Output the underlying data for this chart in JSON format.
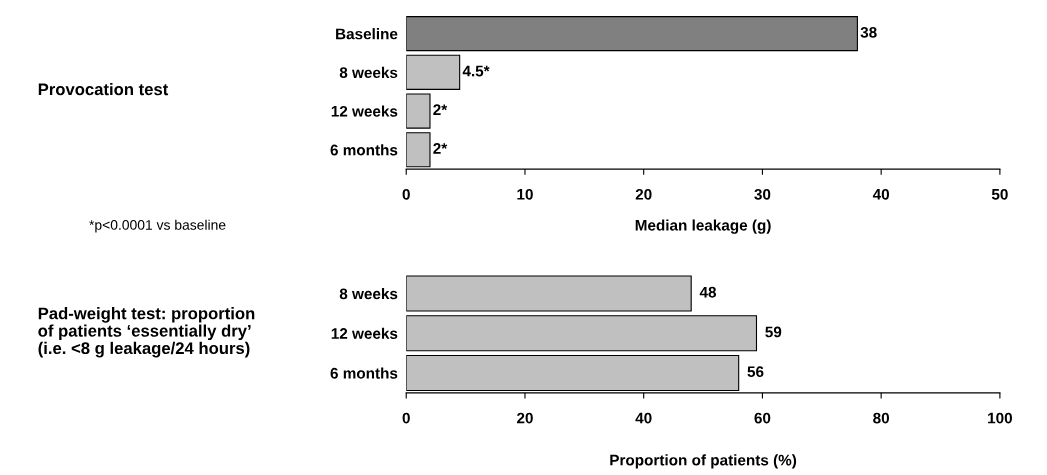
{
  "chart_data": [
    {
      "type": "bar",
      "orientation": "horizontal",
      "ylabel": "Provocation test",
      "categories": [
        "Baseline",
        "8 weeks",
        "12 weeks",
        "6 months"
      ],
      "values": [
        38,
        4.5,
        2,
        2
      ],
      "colors": [
        "#808080",
        "#c0c0c0",
        "#c0c0c0",
        "#c0c0c0"
      ],
      "value_labels": [
        "38",
        "4.5*",
        "2*",
        "2*"
      ],
      "xlabel": "Median leakage (g)",
      "xlim": [
        0,
        50
      ],
      "xticks": [
        0,
        10,
        20,
        30,
        40,
        50
      ],
      "grid": false,
      "legend": false,
      "annotations": [
        "*p<0.0001 vs baseline"
      ]
    },
    {
      "type": "bar",
      "orientation": "horizontal",
      "ylabel": "Pad-weight test: proportion\nof patients ‘essentially dry’\n(i.e. <8 g leakage/24 hours)",
      "categories": [
        "8 weeks",
        "12 weeks",
        "6 months"
      ],
      "values": [
        48,
        59,
        56
      ],
      "colors": [
        "#c0c0c0",
        "#c0c0c0",
        "#c0c0c0"
      ],
      "data_labels": true,
      "xlabel": "Proportion of patients (%)",
      "xlim": [
        0,
        100
      ],
      "xticks": [
        0,
        20,
        40,
        60,
        80,
        100
      ],
      "grid": false,
      "legend": false
    }
  ]
}
